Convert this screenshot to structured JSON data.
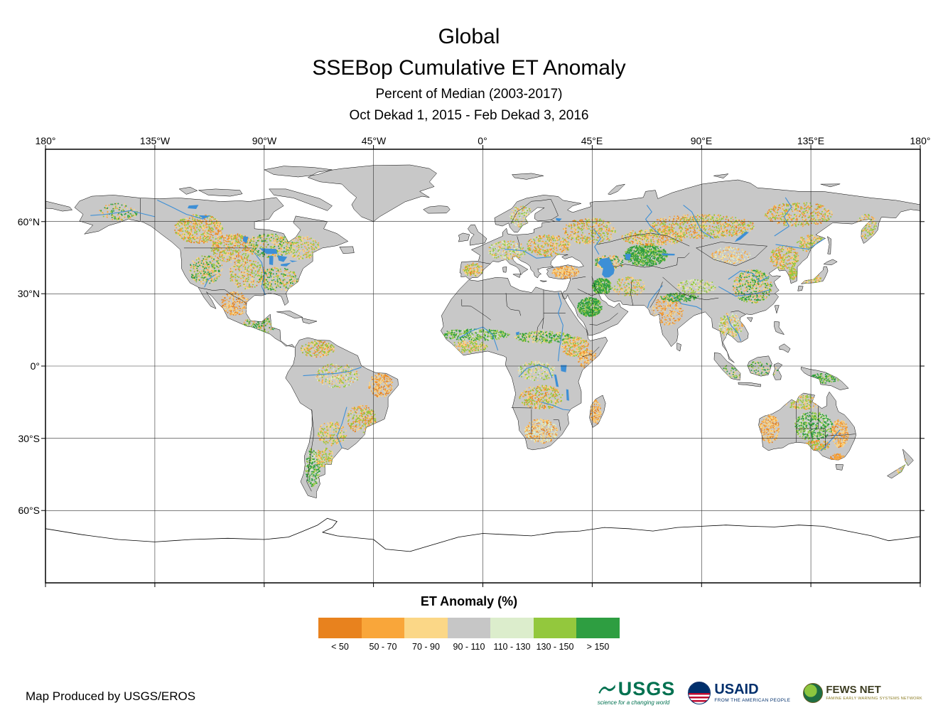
{
  "title": {
    "line1": "Global",
    "line2": "SSEBop Cumulative ET Anomaly",
    "line3": "Percent of Median (2003-2017)",
    "line4": "Oct Dekad 1, 2015 - Feb Dekad 3, 2016"
  },
  "map_axes": {
    "lon_labels": [
      "180°",
      "135°W",
      "90°W",
      "45°W",
      "0°",
      "45°E",
      "90°E",
      "135°E",
      "180°"
    ],
    "lat_labels": [
      "60°N",
      "30°N",
      "0°",
      "30°S",
      "60°S"
    ]
  },
  "legend": {
    "title": "ET Anomaly (%)",
    "classes": [
      {
        "label": "< 50",
        "color": "#E8821E"
      },
      {
        "label": "50 - 70",
        "color": "#F9A63A"
      },
      {
        "label": "70 - 90",
        "color": "#FBD787"
      },
      {
        "label": "90 - 110",
        "color": "#C6C6C6"
      },
      {
        "label": "110 - 130",
        "color": "#DCEDCC"
      },
      {
        "label": "130 - 150",
        "color": "#93C83D"
      },
      {
        "label": "> 150",
        "color": "#2E9E41"
      }
    ]
  },
  "map_colors": {
    "ocean": "#FFFFFF",
    "land_base": "#C8C8C8",
    "water": "#3D8FD6",
    "grid": "#1A1A1A"
  },
  "footer": {
    "credit": "Map Produced by USGS/EROS"
  },
  "logos": {
    "usgs": {
      "name": "USGS",
      "tagline": "science for a changing world"
    },
    "usaid": {
      "name": "USAID",
      "tagline": "FROM THE AMERICAN PEOPLE"
    },
    "fewsnet": {
      "name": "FEWS NET",
      "tagline": "FAMINE EARLY WARNING SYSTEMS NETWORK"
    }
  }
}
